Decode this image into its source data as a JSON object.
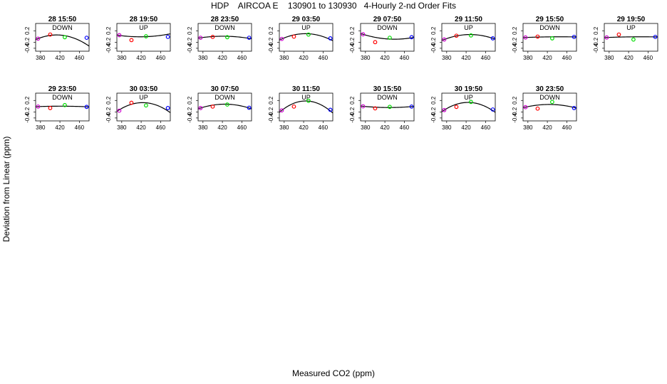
{
  "chart_data": {
    "type": "scatter",
    "title": "HDP    AIRCOA E    130901 to 130930   4-Hourly 2-nd Order Fits",
    "xlabel": "Measured CO2 (ppm)",
    "ylabel": "Deviation from Linear (ppm)",
    "xlim": [
      370,
      480
    ],
    "ylim": [
      -0.5,
      0.45
    ],
    "xticks": [
      "380",
      "420",
      "460"
    ],
    "yticks": [
      "-0.4",
      "-0.2",
      "0.2"
    ],
    "colors": {
      "s1": "#cc00cc",
      "s2": "#ff0000",
      "s3": "#00dd00",
      "s4": "#0000ff",
      "fit": "#000000"
    },
    "panels": [
      {
        "label": "28 15:50",
        "dir": "DOWN",
        "points": [
          [
            375,
            -0.07
          ],
          [
            400,
            0.07
          ],
          [
            430,
            -0.02
          ],
          [
            475,
            -0.04
          ]
        ],
        "fit": [
          -0.07,
          0.0066,
          -8.6e-05
        ]
      },
      {
        "label": "28 19:50",
        "dir": "UP",
        "points": [
          [
            375,
            0.05
          ],
          [
            400,
            -0.12
          ],
          [
            430,
            0.01
          ],
          [
            475,
            -0.01
          ]
        ],
        "fit": [
          0.04,
          -0.0022,
          2.6e-05
        ]
      },
      {
        "label": "28 23:50",
        "dir": "DOWN",
        "points": [
          [
            375,
            -0.04
          ],
          [
            400,
            -0.01
          ],
          [
            430,
            -0.02
          ],
          [
            475,
            -0.04
          ]
        ],
        "fit": [
          -0.04,
          0.0023,
          -2.5e-05
        ]
      },
      {
        "label": "29 03:50",
        "dir": "UP",
        "points": [
          [
            375,
            -0.08
          ],
          [
            400,
            0.0
          ],
          [
            430,
            0.07
          ],
          [
            475,
            -0.06
          ]
        ],
        "fit": [
          -0.08,
          0.0074,
          -7.6e-05
        ]
      },
      {
        "label": "29 07:50",
        "dir": "DOWN",
        "points": [
          [
            375,
            0.08
          ],
          [
            400,
            -0.19
          ],
          [
            430,
            -0.04
          ],
          [
            475,
            -0.02
          ]
        ],
        "fit": [
          0.08,
          -0.0052,
          4e-05
        ]
      },
      {
        "label": "29 11:50",
        "dir": "UP",
        "points": [
          [
            375,
            -0.1
          ],
          [
            400,
            0.03
          ],
          [
            430,
            0.04
          ],
          [
            475,
            -0.06
          ]
        ],
        "fit": [
          -0.1,
          0.0064,
          -6e-05
        ]
      },
      {
        "label": "29 15:50",
        "dir": "DOWN",
        "points": [
          [
            375,
            -0.03
          ],
          [
            400,
            0.0
          ],
          [
            430,
            -0.06
          ],
          [
            475,
            -0.01
          ]
        ],
        "fit": [
          -0.03,
          0.00066,
          -4.6e-06
        ]
      },
      {
        "label": "29 19:50",
        "dir": "UP",
        "points": [
          [
            375,
            -0.03
          ],
          [
            400,
            0.07
          ],
          [
            430,
            -0.1
          ],
          [
            475,
            -0.01
          ]
        ],
        "fit": [
          -0.03,
          0.00066,
          -4.6e-06
        ]
      },
      {
        "label": "29 23:50",
        "dir": "DOWN",
        "points": [
          [
            375,
            -0.01
          ],
          [
            400,
            -0.06
          ],
          [
            430,
            0.04
          ],
          [
            475,
            -0.02
          ]
        ],
        "fit": [
          -0.01,
          0.0006,
          -6.6e-06
        ]
      },
      {
        "label": "30 03:50",
        "dir": "UP",
        "points": [
          [
            375,
            -0.15
          ],
          [
            400,
            0.12
          ],
          [
            430,
            0.03
          ],
          [
            475,
            -0.06
          ]
        ],
        "fit": [
          -0.12,
          0.0102,
          -0.000106
        ]
      },
      {
        "label": "30 07:50",
        "dir": "DOWN",
        "points": [
          [
            375,
            -0.06
          ],
          [
            400,
            -0.01
          ],
          [
            430,
            0.06
          ],
          [
            475,
            -0.05
          ]
        ],
        "fit": [
          -0.06,
          0.0053,
          -5.3e-05
        ]
      },
      {
        "label": "30 11:50",
        "dir": "UP",
        "points": [
          [
            375,
            -0.14
          ],
          [
            400,
            -0.01
          ],
          [
            430,
            0.19
          ],
          [
            475,
            -0.12
          ]
        ],
        "fit": [
          -0.14,
          0.0131,
          -0.000133
        ]
      },
      {
        "label": "30 15:50",
        "dir": "DOWN",
        "points": [
          [
            375,
            0.0
          ],
          [
            400,
            -0.07
          ],
          [
            430,
            -0.02
          ],
          [
            475,
            -0.01
          ]
        ],
        "fit": [
          0.0,
          -0.0016,
          1.5e-05
        ]
      },
      {
        "label": "30 19:50",
        "dir": "UP",
        "points": [
          [
            375,
            -0.13
          ],
          [
            400,
            -0.02
          ],
          [
            430,
            0.15
          ],
          [
            475,
            -0.11
          ]
        ],
        "fit": [
          -0.13,
          0.0107,
          -0.000109
        ]
      },
      {
        "label": "30 23:50",
        "dir": "DOWN",
        "points": [
          [
            375,
            -0.03
          ],
          [
            400,
            -0.08
          ],
          [
            430,
            0.15
          ],
          [
            475,
            -0.06
          ]
        ],
        "fit": [
          -0.03,
          0.0038,
          -3.9e-05
        ]
      }
    ]
  }
}
